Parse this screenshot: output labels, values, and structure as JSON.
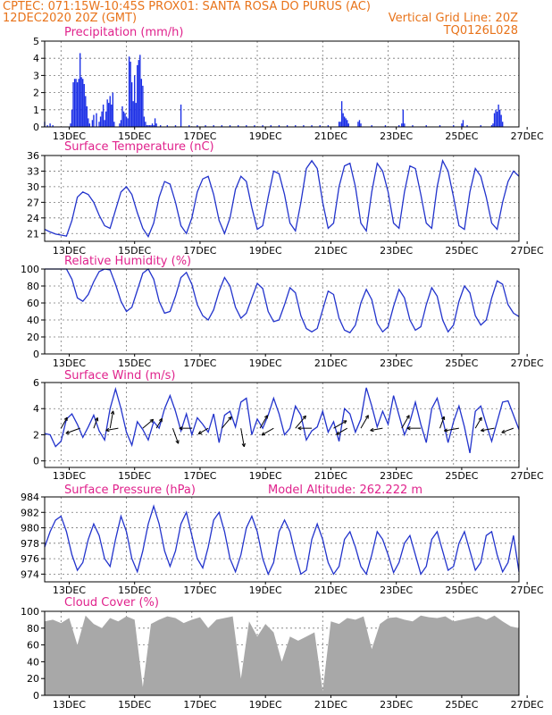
{
  "header": {
    "left_line1": "CPTEC:   071:15W-10:45S   PROX01: SANTA ROSA DO PURUS (AC)",
    "left_line2": "12DEC2020 20Z (GMT)",
    "right_line2": "Vertical Grid Line: 20Z",
    "right_line3": "TQ0126L028"
  },
  "x_tick_labels": [
    "13DEC",
    "15DEC",
    "17DEC",
    "19DEC",
    "21DEC",
    "23DEC",
    "25DEC",
    "27DEC"
  ],
  "colors": {
    "header": "#e8731a",
    "title": "#e0228c",
    "line": "#2233cc",
    "bars": "#1a2ee6",
    "cloud": "#a8a8a8"
  },
  "chart_data": [
    {
      "type": "bar",
      "title": "Precipitation (mm/h)",
      "ylim": [
        0,
        5
      ],
      "yticks": [
        "0",
        "1",
        "2",
        "3",
        "4",
        "5"
      ],
      "x_range_hours": [
        0,
        348
      ],
      "x": [
        0,
        2,
        4,
        6,
        19,
        20,
        21,
        22,
        23,
        24,
        25,
        26,
        27,
        28,
        29,
        30,
        31,
        32,
        33,
        35,
        36,
        38,
        40,
        41,
        42,
        43,
        44,
        45,
        46,
        47,
        48,
        49,
        50,
        51,
        55,
        56,
        57,
        58,
        59,
        60,
        61,
        62,
        63,
        64,
        65,
        66,
        67,
        68,
        69,
        70,
        71,
        72,
        73,
        74,
        75,
        76,
        77,
        78,
        79,
        80,
        81,
        82,
        85,
        90,
        96,
        100,
        106,
        112,
        118,
        124,
        130,
        136,
        142,
        148,
        154,
        160,
        166,
        172,
        178,
        184,
        190,
        196,
        202,
        208,
        216,
        217,
        218,
        219,
        220,
        221,
        222,
        223,
        230,
        231,
        232,
        240,
        250,
        260,
        262,
        263,
        264,
        270,
        280,
        290,
        300,
        306,
        307,
        310,
        320,
        328,
        329,
        330,
        331,
        332,
        333,
        334,
        335,
        336
      ],
      "values": [
        0.3,
        0.1,
        0.2,
        0.1,
        0.2,
        1.0,
        2.6,
        2.8,
        2.8,
        2.6,
        2.8,
        4.3,
        2.9,
        2.8,
        2.5,
        1.8,
        1.2,
        0.5,
        0.2,
        0.4,
        0.7,
        0.8,
        0.3,
        0.6,
        0.9,
        1.3,
        0.4,
        0.9,
        1.6,
        1.4,
        1.8,
        1.3,
        2.0,
        0.3,
        0.2,
        0.4,
        1.2,
        0.9,
        0.8,
        0.6,
        0.5,
        4.1,
        3.8,
        2.6,
        1.5,
        3.0,
        1.4,
        3.6,
        3.9,
        4.2,
        2.8,
        2.4,
        0.6,
        0.3,
        0.1,
        0.1,
        0.1,
        0.1,
        0.2,
        0.1,
        0.5,
        0.2,
        0.1,
        0.1,
        0.1,
        1.3,
        0.1,
        0.1,
        0.1,
        0.1,
        0.1,
        0.1,
        0.1,
        0.1,
        0.1,
        0.1,
        0.1,
        0.1,
        0.1,
        0.1,
        0.1,
        0.1,
        0.1,
        0.1,
        0.3,
        0.3,
        1.5,
        0.8,
        0.6,
        0.5,
        0.4,
        0.2,
        0.3,
        0.4,
        0.2,
        0.1,
        0.1,
        0.1,
        0.2,
        1.0,
        0.2,
        0.1,
        0.1,
        0.1,
        0.1,
        0.2,
        0.4,
        0.1,
        0.1,
        0.1,
        0.2,
        0.8,
        1.0,
        0.9,
        1.3,
        1.0,
        0.7,
        0.3
      ]
    },
    {
      "type": "line",
      "title": "Surface Temperature (nC)",
      "ylim": [
        19.5,
        36
      ],
      "yticks": [
        "21",
        "24",
        "27",
        "30",
        "33",
        "36"
      ],
      "x_range_hours": [
        0,
        348
      ],
      "x": [
        0,
        4,
        8,
        12,
        16,
        20,
        24,
        28,
        32,
        36,
        40,
        44,
        48,
        52,
        56,
        60,
        64,
        68,
        72,
        76,
        80,
        84,
        88,
        92,
        96,
        100,
        104,
        108,
        112,
        116,
        120,
        124,
        128,
        132,
        136,
        140,
        144,
        148,
        152,
        156,
        160,
        164,
        168,
        172,
        176,
        180,
        184,
        188,
        192,
        196,
        200,
        204,
        208,
        212,
        216,
        220,
        224,
        228,
        232,
        236,
        240,
        244,
        248,
        252,
        256,
        260,
        264,
        268,
        272,
        276,
        280,
        284,
        288,
        292,
        296,
        300,
        304,
        308,
        312,
        316,
        320,
        324,
        328,
        332,
        336,
        340,
        344,
        348
      ],
      "values": [
        21.8,
        21.3,
        20.9,
        20.7,
        20.5,
        23.5,
        28.0,
        29.0,
        28.5,
        27.0,
        24.5,
        22.5,
        22.0,
        25.5,
        29.0,
        30.0,
        28.5,
        25.0,
        22.0,
        20.4,
        23.0,
        28.0,
        31.0,
        30.5,
        27.0,
        22.5,
        21.0,
        24.0,
        29.0,
        31.5,
        32.0,
        28.5,
        23.5,
        21.0,
        24.0,
        29.5,
        32.0,
        31.0,
        26.0,
        21.8,
        22.5,
        28.0,
        33.0,
        32.5,
        28.5,
        23.0,
        21.5,
        27.0,
        33.5,
        35.0,
        33.5,
        27.0,
        22.0,
        23.0,
        30.0,
        34.0,
        34.5,
        30.0,
        23.0,
        21.5,
        29.0,
        34.5,
        33.0,
        29.0,
        23.0,
        22.0,
        29.0,
        34.0,
        33.5,
        28.5,
        23.0,
        22.0,
        30.0,
        35.0,
        33.0,
        28.0,
        22.5,
        21.8,
        29.0,
        33.5,
        32.0,
        28.0,
        23.0,
        21.8,
        27.0,
        31.0,
        33.0,
        32.0
      ]
    },
    {
      "type": "line",
      "title": "Relative Humidity (%)",
      "ylim": [
        0,
        100
      ],
      "yticks": [
        "0",
        "20",
        "40",
        "60",
        "80",
        "100"
      ],
      "x_range_hours": [
        0,
        348
      ],
      "x": [
        0,
        4,
        8,
        12,
        16,
        20,
        24,
        28,
        32,
        36,
        40,
        44,
        48,
        52,
        56,
        60,
        64,
        68,
        72,
        76,
        80,
        84,
        88,
        92,
        96,
        100,
        104,
        108,
        112,
        116,
        120,
        124,
        128,
        132,
        136,
        140,
        144,
        148,
        152,
        156,
        160,
        164,
        168,
        172,
        176,
        180,
        184,
        188,
        192,
        196,
        200,
        204,
        208,
        212,
        216,
        220,
        224,
        228,
        232,
        236,
        240,
        244,
        248,
        252,
        256,
        260,
        264,
        268,
        272,
        276,
        280,
        284,
        288,
        292,
        296,
        300,
        304,
        308,
        312,
        316,
        320,
        324,
        328,
        332,
        336,
        340,
        344,
        348
      ],
      "values": [
        100,
        100,
        100,
        100,
        100,
        88,
        66,
        62,
        70,
        85,
        97,
        100,
        99,
        82,
        62,
        50,
        55,
        75,
        95,
        100,
        88,
        62,
        48,
        50,
        68,
        90,
        96,
        82,
        58,
        45,
        40,
        52,
        74,
        90,
        80,
        55,
        42,
        48,
        66,
        83,
        77,
        50,
        38,
        40,
        58,
        78,
        72,
        45,
        30,
        26,
        30,
        52,
        74,
        70,
        42,
        28,
        25,
        34,
        60,
        76,
        64,
        36,
        26,
        32,
        56,
        76,
        66,
        40,
        28,
        32,
        58,
        78,
        68,
        40,
        26,
        34,
        62,
        80,
        72,
        45,
        34,
        40,
        66,
        86,
        82,
        58,
        48,
        44
      ]
    },
    {
      "type": "line",
      "title": "Surface Wind (m/s)",
      "ylim": [
        -0.5,
        6
      ],
      "yticks": [
        "0",
        "2",
        "4",
        "6"
      ],
      "x_range_hours": [
        0,
        348
      ],
      "x": [
        0,
        4,
        8,
        12,
        16,
        20,
        24,
        28,
        32,
        36,
        40,
        44,
        48,
        52,
        56,
        60,
        64,
        68,
        72,
        76,
        80,
        84,
        88,
        92,
        96,
        100,
        104,
        108,
        112,
        116,
        120,
        124,
        128,
        132,
        136,
        140,
        144,
        148,
        152,
        156,
        160,
        164,
        168,
        172,
        176,
        180,
        184,
        188,
        192,
        196,
        200,
        204,
        208,
        212,
        216,
        220,
        224,
        228,
        232,
        236,
        240,
        244,
        248,
        252,
        256,
        260,
        264,
        268,
        272,
        276,
        280,
        284,
        288,
        292,
        296,
        300,
        304,
        308,
        312,
        316,
        320,
        324,
        328,
        332,
        336,
        340,
        344,
        348
      ],
      "values": [
        2.1,
        2.0,
        1.1,
        1.5,
        3.2,
        3.6,
        2.8,
        1.8,
        2.6,
        3.5,
        2.3,
        1.6,
        4.0,
        5.5,
        4.0,
        2.2,
        1.2,
        3.0,
        2.4,
        1.6,
        3.0,
        2.5,
        4.0,
        5.0,
        3.8,
        2.3,
        3.6,
        2.0,
        3.3,
        2.8,
        2.2,
        3.6,
        1.4,
        3.5,
        3.8,
        2.6,
        4.5,
        4.8,
        2.0,
        3.2,
        2.5,
        3.5,
        4.8,
        3.6,
        2.0,
        2.5,
        4.2,
        3.5,
        1.6,
        2.3,
        2.6,
        3.8,
        2.2,
        3.0,
        1.5,
        4.0,
        3.6,
        2.2,
        3.2,
        5.6,
        4.2,
        2.6,
        3.8,
        2.8,
        5.0,
        3.5,
        2.0,
        3.0,
        4.5,
        2.8,
        1.4,
        4.0,
        4.8,
        3.2,
        1.4,
        3.0,
        4.2,
        2.6,
        0.6,
        3.8,
        4.2,
        2.8,
        1.5,
        3.0,
        4.5,
        4.6,
        3.5,
        2.4
      ],
      "vector_x": [
        12,
        26,
        36,
        48,
        54,
        72,
        82,
        94,
        108,
        120,
        130,
        144,
        158,
        168,
        184,
        196,
        212,
        222,
        232,
        248,
        262,
        276,
        290,
        304,
        316,
        330,
        344
      ],
      "vector_dir_deg": [
        60,
        200,
        70,
        80,
        190,
        40,
        60,
        290,
        180,
        210,
        50,
        280,
        60,
        210,
        50,
        180,
        30,
        210,
        60,
        190,
        60,
        180,
        70,
        190,
        60,
        190,
        200
      ],
      "vector_len": [
        1.0,
        1.2,
        0.9,
        1.4,
        1.0,
        1.1,
        0.9,
        1.3,
        1.0,
        0.9,
        1.2,
        1.5,
        1.2,
        1.1,
        1.3,
        1.1,
        1.2,
        1.0,
        1.2,
        1.0,
        1.2,
        1.1,
        1.0,
        1.2,
        1.0,
        1.1,
        1.0
      ]
    },
    {
      "type": "line",
      "title": "Surface Pressure (hPa)",
      "subtitle": "Model Altitude: 262.222 m",
      "ylim": [
        973,
        984
      ],
      "yticks": [
        "974",
        "976",
        "978",
        "980",
        "982",
        "984"
      ],
      "x_range_hours": [
        0,
        348
      ],
      "x": [
        0,
        4,
        8,
        12,
        16,
        20,
        24,
        28,
        32,
        36,
        40,
        44,
        48,
        52,
        56,
        60,
        64,
        68,
        72,
        76,
        80,
        84,
        88,
        92,
        96,
        100,
        104,
        108,
        112,
        116,
        120,
        124,
        128,
        132,
        136,
        140,
        144,
        148,
        152,
        156,
        160,
        164,
        168,
        172,
        176,
        180,
        184,
        188,
        192,
        196,
        200,
        204,
        208,
        212,
        216,
        220,
        224,
        228,
        232,
        236,
        240,
        244,
        248,
        252,
        256,
        260,
        264,
        268,
        272,
        276,
        280,
        284,
        288,
        292,
        296,
        300,
        304,
        308,
        312,
        316,
        320,
        324,
        328,
        332,
        336,
        340,
        344,
        348
      ],
      "values": [
        977.5,
        979.5,
        981.0,
        981.5,
        979.5,
        976.5,
        974.5,
        975.5,
        978.5,
        980.5,
        979.0,
        976.0,
        975.0,
        978.5,
        981.5,
        979.5,
        976.0,
        974.3,
        977.0,
        980.5,
        982.8,
        980.5,
        977.0,
        975.0,
        977.0,
        980.5,
        982.0,
        979.0,
        976.0,
        974.8,
        977.5,
        981.0,
        982.0,
        979.5,
        976.0,
        974.3,
        976.5,
        980.0,
        981.5,
        979.5,
        976.0,
        974.0,
        975.5,
        979.5,
        981.0,
        979.5,
        976.5,
        974.0,
        974.5,
        978.5,
        980.5,
        978.5,
        975.5,
        974.0,
        975.0,
        978.5,
        979.5,
        977.5,
        975.0,
        974.0,
        976.5,
        979.5,
        978.5,
        976.5,
        974.2,
        975.5,
        978.0,
        979.0,
        976.5,
        974.0,
        975.0,
        978.5,
        979.5,
        977.0,
        974.5,
        975.0,
        978.0,
        979.5,
        977.0,
        974.5,
        975.5,
        979.0,
        979.5,
        976.5,
        974.3,
        975.5,
        979.0,
        974.3
      ]
    },
    {
      "type": "area",
      "title": "Cloud Cover (%)",
      "ylim": [
        0,
        100
      ],
      "yticks": [
        "0",
        "20",
        "40",
        "60",
        "80",
        "100"
      ],
      "x_range_hours": [
        0,
        348
      ],
      "x": [
        0,
        6,
        12,
        18,
        24,
        30,
        36,
        42,
        48,
        54,
        60,
        66,
        72,
        78,
        84,
        90,
        96,
        102,
        108,
        114,
        120,
        126,
        132,
        138,
        144,
        150,
        156,
        162,
        168,
        174,
        180,
        186,
        192,
        198,
        204,
        210,
        216,
        222,
        228,
        234,
        240,
        246,
        252,
        258,
        264,
        270,
        276,
        282,
        288,
        294,
        300,
        306,
        312,
        318,
        324,
        330,
        336,
        342,
        348
      ],
      "values": [
        88,
        90,
        86,
        92,
        60,
        95,
        85,
        80,
        92,
        88,
        94,
        90,
        10,
        85,
        90,
        94,
        92,
        86,
        90,
        93,
        80,
        90,
        92,
        94,
        20,
        88,
        70,
        85,
        75,
        40,
        70,
        65,
        70,
        75,
        5,
        88,
        85,
        92,
        90,
        94,
        55,
        85,
        92,
        93,
        90,
        88,
        95,
        93,
        92,
        94,
        88,
        90,
        92,
        94,
        90,
        95,
        88,
        82,
        80
      ]
    }
  ],
  "panels": {
    "p1": {
      "title": "Precipitation (mm/h)"
    },
    "p2": {
      "title": "Surface Temperature (nC)"
    },
    "p3": {
      "title": "Relative Humidity (%)"
    },
    "p4": {
      "title": "Surface Wind (m/s)"
    },
    "p5": {
      "title": "Surface Pressure (hPa)",
      "subtitle": "Model Altitude: 262.222 m"
    },
    "p6": {
      "title": "Cloud Cover (%)"
    }
  }
}
